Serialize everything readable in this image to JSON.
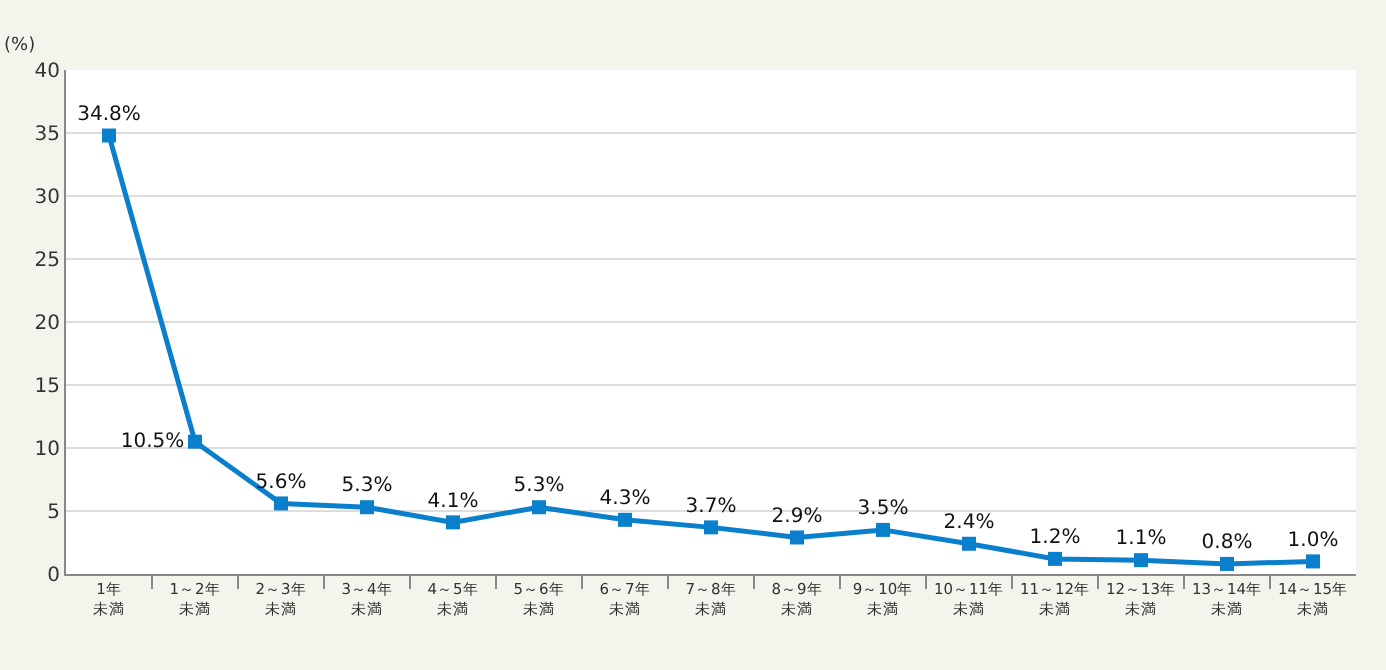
{
  "chart_data": {
    "type": "line",
    "ylabel": "(%)",
    "categories": [
      "1年未満",
      "1～2年未満",
      "2～3年未満",
      "3～4年未満",
      "4～5年未満",
      "5～6年未満",
      "6～7年未満",
      "7～8年未満",
      "8～9年未満",
      "9～10年未満",
      "10～11年未満",
      "11～12年未満",
      "12～13年未満",
      "13～14年未満",
      "14～15年未満"
    ],
    "values": [
      34.8,
      10.5,
      5.6,
      5.3,
      4.1,
      5.3,
      4.3,
      3.7,
      2.9,
      3.5,
      2.4,
      1.2,
      1.1,
      0.8,
      1.0
    ],
    "value_labels": [
      "34.8%",
      "10.5%",
      "5.6%",
      "5.3%",
      "4.1%",
      "5.3%",
      "4.3%",
      "3.7%",
      "2.9%",
      "3.5%",
      "2.4%",
      "1.2%",
      "1.1%",
      "0.8%",
      "1.0%"
    ],
    "color": "#0a7fcc",
    "marker": "square",
    "line_style": "solid",
    "ylim": [
      0,
      40
    ],
    "yticks": [
      0,
      5,
      10,
      15,
      20,
      25,
      30,
      35,
      40
    ],
    "grid": "y"
  }
}
